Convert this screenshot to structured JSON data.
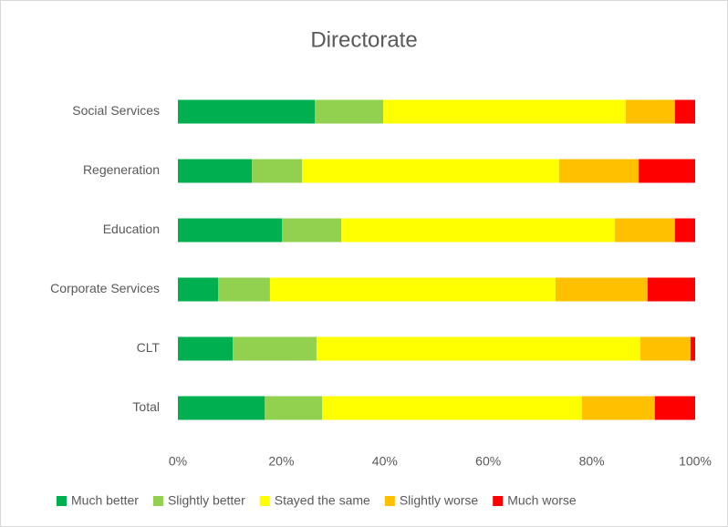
{
  "chart_data": {
    "type": "stacked_barh",
    "title": "Directorate",
    "categories": [
      "Social Services",
      "Regeneration",
      "Education",
      "Corporate Services",
      "CLT",
      "Total"
    ],
    "series": [
      {
        "name": "Much better",
        "color": "#00b050",
        "values": [
          26.5,
          14.3,
          20.1,
          7.8,
          10.6,
          16.8
        ]
      },
      {
        "name": "Slightly better",
        "color": "#92d050",
        "values": [
          13.2,
          9.7,
          11.5,
          10.0,
          16.2,
          11.1
        ]
      },
      {
        "name": "Stayed the same",
        "color": "#ffff00",
        "values": [
          46.9,
          49.7,
          52.9,
          55.2,
          62.6,
          50.2
        ]
      },
      {
        "name": "Slightly worse",
        "color": "#ffc000",
        "values": [
          9.5,
          15.4,
          11.6,
          17.8,
          9.7,
          14.1
        ]
      },
      {
        "name": "Much worse",
        "color": "#ff0000",
        "values": [
          3.9,
          10.9,
          3.9,
          9.2,
          0.9,
          7.8
        ]
      }
    ],
    "xlim": [
      0,
      100
    ],
    "xticks": [
      {
        "value": 0,
        "label": "0%"
      },
      {
        "value": 20,
        "label": "20%"
      },
      {
        "value": 40,
        "label": "40%"
      },
      {
        "value": 60,
        "label": "60%"
      },
      {
        "value": 80,
        "label": "80%"
      },
      {
        "value": 100,
        "label": "100%"
      }
    ],
    "legend": "bottom"
  }
}
